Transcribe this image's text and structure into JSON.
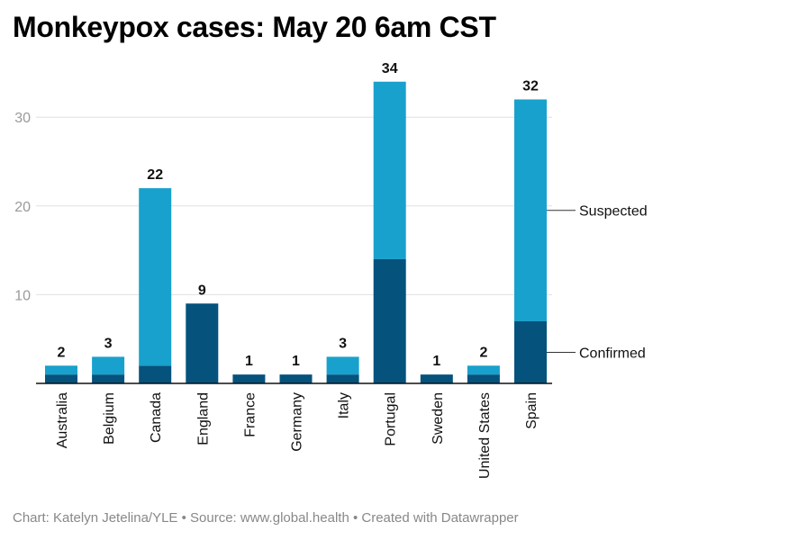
{
  "header": {
    "title": "Monkeypox cases: May 20 6am CST"
  },
  "footer": {
    "credit": "Chart: Katelyn Jetelina/YLE • Source: www.global.health • Created with Datawrapper"
  },
  "colors": {
    "confirmed": "#05527d",
    "suspected": "#18a1cd",
    "grid": "#e0e0e0",
    "axis": "#111111",
    "tick_label": "#9a9a9a"
  },
  "chart_data": {
    "type": "bar",
    "stacked": true,
    "title": "Monkeypox cases: May 20 6am CST",
    "xlabel": "",
    "ylabel": "",
    "ylim": [
      0,
      35
    ],
    "yticks": [
      10,
      20,
      30
    ],
    "grid": true,
    "categories": [
      "Australia",
      "Belgium",
      "Canada",
      "England",
      "France",
      "Germany",
      "Italy",
      "Portugal",
      "Sweden",
      "United States",
      "Spain"
    ],
    "series": [
      {
        "name": "Confirmed",
        "values": [
          1,
          1,
          2,
          9,
          1,
          1,
          1,
          14,
          1,
          1,
          7
        ]
      },
      {
        "name": "Suspected",
        "values": [
          1,
          2,
          20,
          0,
          0,
          0,
          2,
          20,
          0,
          1,
          25
        ]
      }
    ],
    "totals": [
      2,
      3,
      22,
      9,
      1,
      1,
      3,
      34,
      1,
      2,
      32
    ],
    "legend_placement": "right, labels at the last bar"
  }
}
